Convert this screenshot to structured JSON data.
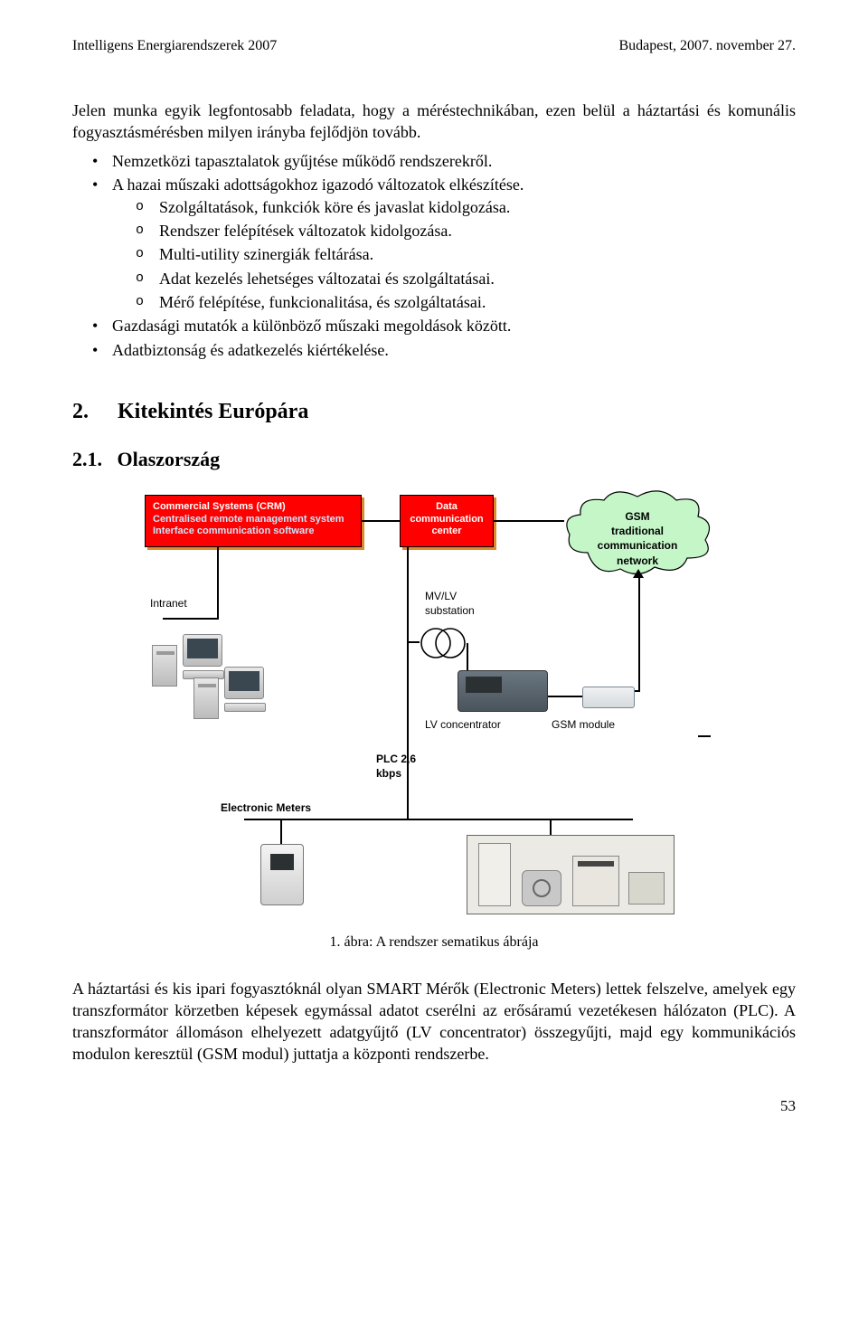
{
  "header": {
    "left": "Intelligens Energiarendszerek 2007",
    "right": "Budapest, 2007. november 27."
  },
  "intro": "Jelen munka egyik legfontosabb feladata, hogy a méréstechnikában, ezen belül a háztartási és komunális fogyasztásmérésben milyen irányba fejlődjön tovább.",
  "bullets": [
    {
      "text": "Nemzetközi tapasztalatok gyűjtése működő rendszerekről.",
      "sub": []
    },
    {
      "text": "A hazai műszaki adottságokhoz igazodó változatok elkészítése.",
      "sub": [
        "Szolgáltatások, funkciók köre és javaslat kidolgozása.",
        "Rendszer felépítések változatok kidolgozása.",
        "Multi-utility szinergiák feltárása.",
        "Adat kezelés lehetséges változatai és szolgáltatásai.",
        "Mérő felépítése, funkcionalitása, és szolgáltatásai."
      ]
    },
    {
      "text": "Gazdasági mutatók a különböző műszaki megoldások között.",
      "sub": []
    },
    {
      "text": "Adatbiztonság és adatkezelés kiértékelése.",
      "sub": []
    }
  ],
  "sections": {
    "s2_num": "2.",
    "s2_title": "Kitekintés Európára",
    "s21_num": "2.1.",
    "s21_title": "Olaszország"
  },
  "diagram": {
    "crm_box_html": "Commercial Systems (CRM)<br><span style='color:#c6e8ff'>Centralised remote management system</span><br><span style='color:#c6e8ff'>Interface communication software</span>",
    "data_center_html": "Data<br>communication<br>center",
    "cloud_html": "GSM<br>traditional<br>communication<br>network",
    "labels": {
      "intranet": "Intranet",
      "mvlv": "MV/LV\nsubstation",
      "lvconc": "LV concentrator",
      "gsmmod": "GSM module",
      "plc": "PLC 2,6\nkbps",
      "meters": "Electronic Meters"
    },
    "colors": {
      "box_bg": "#ff0000",
      "box_shadow": "#d98c2e",
      "cloud_fill": "#c5f6c8",
      "cloud_stroke": "#000000",
      "line_color": "#000000"
    }
  },
  "figure_caption": "1. ábra: A rendszer sematikus ábrája",
  "body_para": "A háztartási és kis ipari fogyasztóknál olyan SMART Mérők (Electronic Meters) lettek felszelve, amelyek egy transzformátor körzetben képesek egymással adatot cserélni az erősáramú vezetékesen hálózaton (PLC). A transzformátor állomáson elhelyezett adatgyűjtő (LV concentrator) összegyűjti, majd egy kommunikációs modulon keresztül (GSM modul) juttatja a központi rendszerbe.",
  "page_number": "53"
}
